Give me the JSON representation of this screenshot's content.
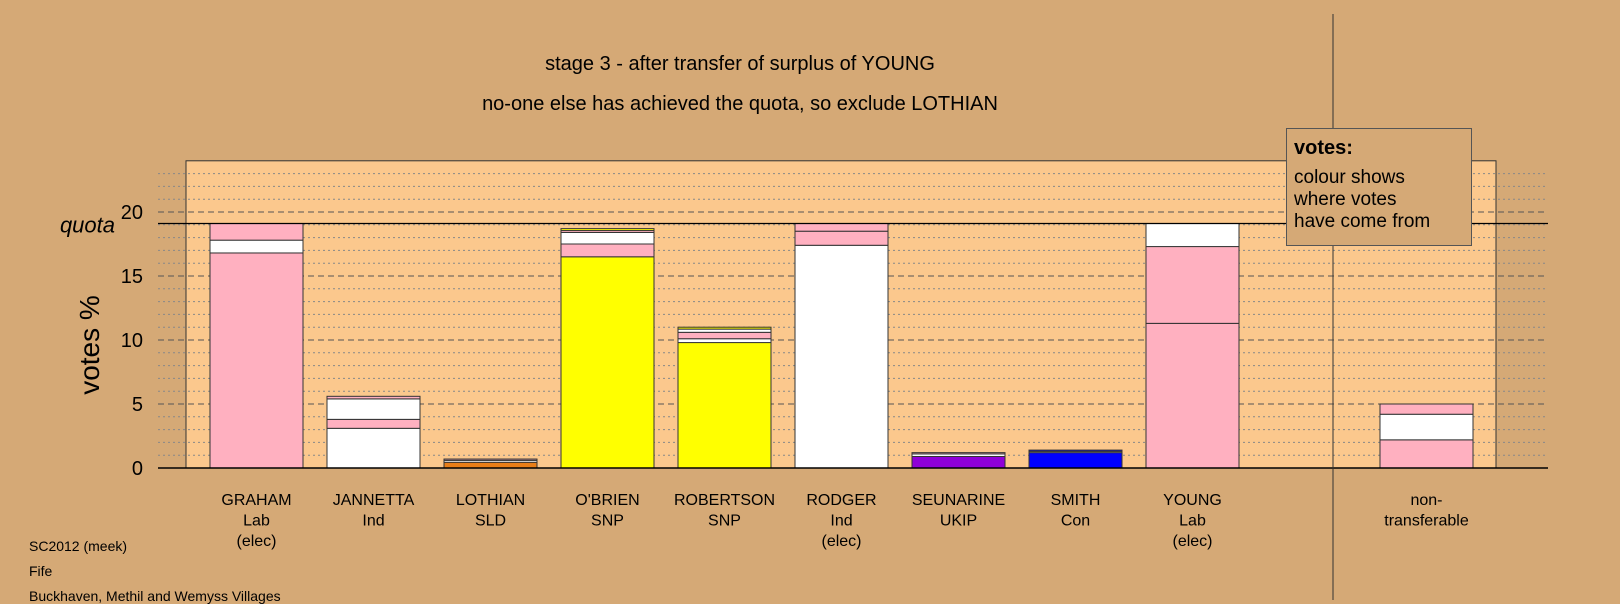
{
  "title": "stage 3 - after transfer of surplus of YOUNG",
  "subtitle": "no-one else has achieved the quota, so exclude LOTHIAN",
  "legend": {
    "title": "votes:",
    "lines": [
      "colour shows",
      "where votes",
      "have come from"
    ]
  },
  "footer": [
    "SC2012 (meek)",
    "Fife",
    "Buckhaven, Methil and Wemyss Villages"
  ],
  "colors": {
    "background": "#d5a976",
    "plot_area": "#fbc88d",
    "Lab": "#ffb0c0",
    "Ind": "#ffffff",
    "SLD": "#e87e18",
    "SNP": "#ffff00",
    "UKIP": "#8f00d8",
    "Con": "#0000ff"
  },
  "chart_data": {
    "type": "bar",
    "stacked": true,
    "title": "stage 3 - after transfer of surplus of YOUNG",
    "subtitle": "no-one else has achieved the quota, so exclude LOTHIAN",
    "ylabel": "votes %",
    "ylim": [
      0,
      24
    ],
    "yticks": [
      0,
      5,
      10,
      15,
      20
    ],
    "quota": 19.1,
    "quota_label": "quota",
    "grid": true,
    "legend_position": "top-right",
    "categories": [
      {
        "lines": [
          "GRAHAM",
          "Lab",
          "(elec)"
        ],
        "segments": [
          {
            "from": "Lab",
            "value": 16.8
          },
          {
            "from": "Ind",
            "value": 1.0
          },
          {
            "from": "Lab",
            "value": 1.3
          }
        ]
      },
      {
        "lines": [
          "JANNETTA",
          "Ind"
        ],
        "segments": [
          {
            "from": "Ind",
            "value": 3.1
          },
          {
            "from": "Lab",
            "value": 0.7
          },
          {
            "from": "Ind",
            "value": 1.6
          },
          {
            "from": "Lab",
            "value": 0.2
          }
        ]
      },
      {
        "lines": [
          "LOTHIAN",
          "SLD"
        ],
        "segments": [
          {
            "from": "SLD",
            "value": 0.45
          },
          {
            "from": "Ind",
            "value": 0.15
          },
          {
            "from": "Lab",
            "value": 0.1
          }
        ]
      },
      {
        "lines": [
          "O'BRIEN",
          "SNP"
        ],
        "segments": [
          {
            "from": "SNP",
            "value": 16.5
          },
          {
            "from": "Lab",
            "value": 1.0
          },
          {
            "from": "Ind",
            "value": 0.9
          },
          {
            "from": "Lab",
            "value": 0.15
          },
          {
            "from": "SNP",
            "value": 0.15
          }
        ]
      },
      {
        "lines": [
          "ROBERTSON",
          "SNP"
        ],
        "segments": [
          {
            "from": "SNP",
            "value": 9.8
          },
          {
            "from": "Ind",
            "value": 0.3
          },
          {
            "from": "Lab",
            "value": 0.5
          },
          {
            "from": "Ind",
            "value": 0.25
          },
          {
            "from": "SNP",
            "value": 0.15
          }
        ]
      },
      {
        "lines": [
          "RODGER",
          "Ind",
          "(elec)"
        ],
        "segments": [
          {
            "from": "Ind",
            "value": 17.4
          },
          {
            "from": "Lab",
            "value": 1.1
          },
          {
            "from": "Lab",
            "value": 0.6
          }
        ]
      },
      {
        "lines": [
          "SEUNARINE",
          "UKIP"
        ],
        "segments": [
          {
            "from": "UKIP",
            "value": 0.9
          },
          {
            "from": "Ind",
            "value": 0.2
          },
          {
            "from": "Lab",
            "value": 0.1
          }
        ]
      },
      {
        "lines": [
          "SMITH",
          "Con"
        ],
        "segments": [
          {
            "from": "Con",
            "value": 1.2
          },
          {
            "from": "Ind",
            "value": 0.1
          },
          {
            "from": "Con",
            "value": 0.1
          }
        ]
      },
      {
        "lines": [
          "YOUNG",
          "Lab",
          "(elec)"
        ],
        "segments": [
          {
            "from": "Lab",
            "value": 11.3
          },
          {
            "from": "Lab",
            "value": 6.0
          },
          {
            "from": "Ind",
            "value": 1.8
          }
        ]
      },
      {
        "lines": [],
        "segments": []
      },
      {
        "lines": [
          "non-",
          "transferable"
        ],
        "segments": [
          {
            "from": "Lab",
            "value": 2.2
          },
          {
            "from": "Ind",
            "value": 2.0
          },
          {
            "from": "Lab",
            "value": 0.8
          }
        ]
      }
    ]
  }
}
